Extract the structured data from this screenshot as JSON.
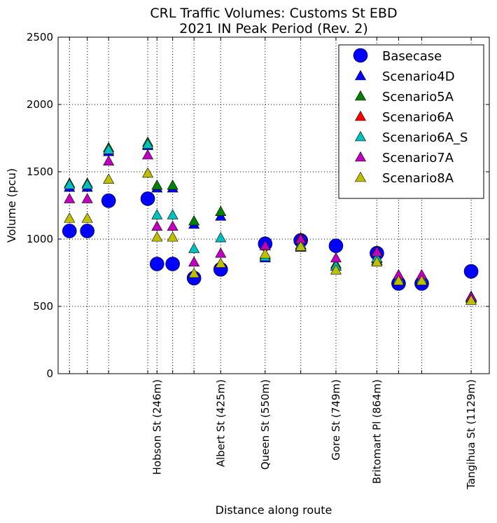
{
  "chart_data": {
    "type": "scatter",
    "title": [
      "CRL Traffic Volumes: Customs St EBD",
      "2021 IN Peak Period (Rev. 2)"
    ],
    "xlabel": "Distance along route",
    "ylabel": "Volume (pcu)",
    "xlim": [
      -32,
      1180
    ],
    "ylim": [
      0,
      2500
    ],
    "yticks": [
      0,
      500,
      1000,
      1500,
      2000,
      2500
    ],
    "ytick_labels": [
      "0",
      "500",
      "1000",
      "1500",
      "2000",
      "2500"
    ],
    "x_positions": [
      0,
      50,
      110,
      220,
      246,
      290,
      350,
      425,
      550,
      650,
      749,
      864,
      925,
      990,
      1129
    ],
    "labeled_ticks": [
      {
        "x": 246,
        "label": "Hobson St (246m)"
      },
      {
        "x": 425,
        "label": "Albert St (425m)"
      },
      {
        "x": 550,
        "label": "Queen St (550m)"
      },
      {
        "x": 749,
        "label": "Gore St (749m)"
      },
      {
        "x": 864,
        "label": "Britomart Pl (864m)"
      },
      {
        "x": 1129,
        "label": "Tangihua St (1129m)"
      }
    ],
    "legend_position": "top-right",
    "series": [
      {
        "name": "Basecase",
        "marker": "circle",
        "color": "#0000ff",
        "x": [
          0,
          50,
          110,
          220,
          246,
          290,
          350,
          425,
          550,
          650,
          749,
          864,
          925,
          990,
          1129
        ],
        "y": [
          1060,
          1060,
          1285,
          1300,
          815,
          815,
          710,
          775,
          965,
          990,
          950,
          895,
          670,
          670,
          760
        ]
      },
      {
        "name": "Scenario4D",
        "marker": "triangle",
        "color": "#0000ff",
        "x": [
          0,
          50,
          110,
          220,
          246,
          290,
          350,
          425,
          550,
          650,
          749,
          864,
          925,
          990,
          1129
        ],
        "y": [
          1385,
          1385,
          1650,
          1695,
          1380,
          1380,
          1110,
          1170,
          860,
          940,
          800,
          840,
          690,
          690,
          565
        ]
      },
      {
        "name": "Scenario5A",
        "marker": "triangle",
        "color": "#008000",
        "x": [
          0,
          50,
          110,
          220,
          246,
          290,
          350,
          425,
          550,
          650,
          749,
          864,
          925,
          990,
          1129
        ],
        "y": [
          1415,
          1415,
          1680,
          1720,
          1400,
          1400,
          1135,
          1205,
          880,
          950,
          815,
          855,
          700,
          700,
          575
        ]
      },
      {
        "name": "Scenario6A",
        "marker": "triangle",
        "color": "#ff0000",
        "x": [
          650,
          864
        ],
        "y": [
          1010,
          910
        ]
      },
      {
        "name": "Scenario6A_S",
        "marker": "triangle",
        "color": "#00bfbf",
        "x": [
          0,
          50,
          110,
          220,
          246,
          290,
          350,
          425,
          550,
          650,
          749,
          864,
          925,
          990,
          1129
        ],
        "y": [
          1405,
          1405,
          1665,
          1705,
          1180,
          1180,
          930,
          1010,
          870,
          960,
          800,
          860,
          705,
          705,
          560
        ]
      },
      {
        "name": "Scenario7A",
        "marker": "triangle",
        "color": "#bf00bf",
        "x": [
          0,
          50,
          110,
          220,
          246,
          290,
          350,
          425,
          550,
          650,
          749,
          864,
          925,
          990,
          1129
        ],
        "y": [
          1300,
          1300,
          1580,
          1625,
          1095,
          1095,
          830,
          895,
          950,
          1000,
          860,
          905,
          735,
          735,
          570
        ]
      },
      {
        "name": "Scenario8A",
        "marker": "triangle",
        "color": "#bfbf00",
        "x": [
          0,
          50,
          110,
          220,
          246,
          290,
          350,
          425,
          550,
          650,
          749,
          864,
          925,
          990,
          1129
        ],
        "y": [
          1155,
          1155,
          1445,
          1490,
          1015,
          1015,
          745,
          820,
          890,
          945,
          770,
          830,
          690,
          690,
          545
        ]
      }
    ]
  }
}
